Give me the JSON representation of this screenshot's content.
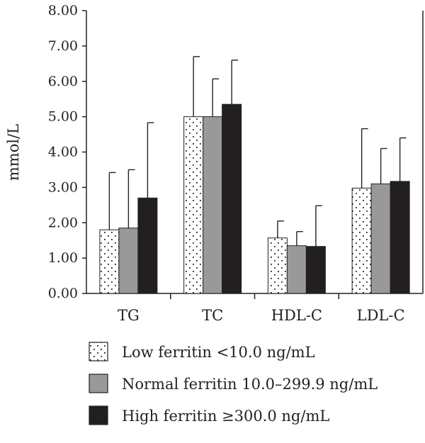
{
  "chart_data": {
    "type": "bar",
    "title": "",
    "xlabel": "",
    "ylabel": "mmol/L",
    "ylim": [
      0,
      8
    ],
    "yticks": [
      "0.00",
      "1.00",
      "2.00",
      "3.00",
      "4.00",
      "5.00",
      "6.00",
      "7.00",
      "8.00"
    ],
    "categories": [
      "TG",
      "TC",
      "HDL-C",
      "LDL-C"
    ],
    "error_bars": "upper, standard deviation",
    "grid": false,
    "legend_position": "bottom",
    "series": [
      {
        "name": "Low ferritin <10.0 ng/mL",
        "pattern": "dotted",
        "color": "#ffffff",
        "values": [
          1.8,
          5.0,
          1.57,
          2.98
        ],
        "error_upper": [
          3.42,
          6.7,
          2.05,
          4.66
        ]
      },
      {
        "name": "Normal ferritin 10.0–299.9 ng/mL",
        "pattern": "solid",
        "color": "#999999",
        "values": [
          1.85,
          5.0,
          1.35,
          3.1
        ],
        "error_upper": [
          3.5,
          6.07,
          1.75,
          4.1
        ]
      },
      {
        "name": "High ferritin ≥300.0 ng/mL",
        "pattern": "solid",
        "color": "#231f20",
        "values": [
          2.7,
          5.35,
          1.33,
          3.17
        ],
        "error_upper": [
          4.83,
          6.6,
          2.48,
          4.4
        ]
      }
    ]
  }
}
